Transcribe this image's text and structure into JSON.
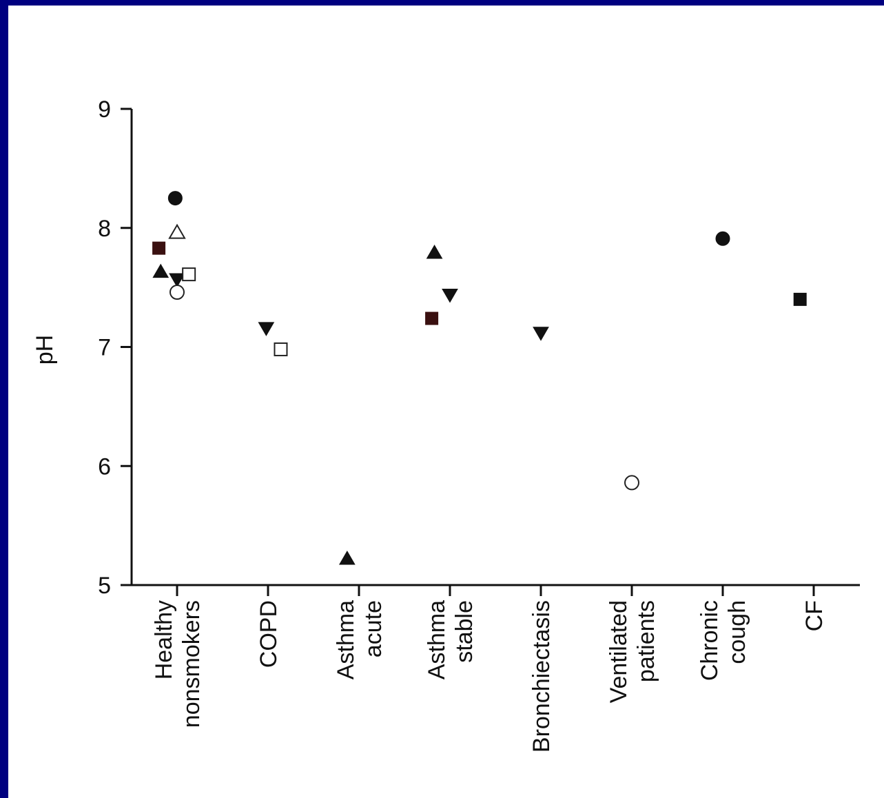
{
  "chart_data": {
    "type": "scatter",
    "title": "",
    "xlabel": "",
    "ylabel": "pH",
    "ylim": [
      5,
      9
    ],
    "yticks": [
      "5",
      "6",
      "7",
      "8",
      "9"
    ],
    "grid": false,
    "categories": [
      {
        "id": "healthy",
        "lines": [
          "Healthy",
          "nonsmokers"
        ]
      },
      {
        "id": "copd",
        "lines": [
          "COPD"
        ]
      },
      {
        "id": "asthma-acute",
        "lines": [
          "Asthma",
          "acute"
        ]
      },
      {
        "id": "asthma-stable",
        "lines": [
          "Asthma",
          "stable"
        ]
      },
      {
        "id": "bronchiectasis",
        "lines": [
          "Bronchiectasis"
        ]
      },
      {
        "id": "ventilated",
        "lines": [
          "Ventilated",
          "patients"
        ]
      },
      {
        "id": "chronic-cough",
        "lines": [
          "Chronic",
          "cough"
        ]
      },
      {
        "id": "cf",
        "lines": [
          "CF"
        ]
      }
    ],
    "points": [
      {
        "category": 0,
        "offset": -0.2,
        "y": 7.83,
        "marker": "square",
        "filled": true,
        "color": "#3a1010"
      },
      {
        "category": 0,
        "offset": -0.18,
        "y": 7.63,
        "marker": "triangle-up",
        "filled": true,
        "color": "#111111"
      },
      {
        "category": 0,
        "offset": -0.02,
        "y": 8.25,
        "marker": "circle",
        "filled": true,
        "color": "#111111"
      },
      {
        "category": 0,
        "offset": 0.0,
        "y": 7.96,
        "marker": "triangle-up",
        "filled": false,
        "color": "#111111"
      },
      {
        "category": 0,
        "offset": 0.0,
        "y": 7.57,
        "marker": "triangle-down",
        "filled": true,
        "color": "#111111"
      },
      {
        "category": 0,
        "offset": 0.0,
        "y": 7.46,
        "marker": "circle",
        "filled": false,
        "color": "#111111"
      },
      {
        "category": 0,
        "offset": 0.13,
        "y": 7.61,
        "marker": "square",
        "filled": false,
        "color": "#111111"
      },
      {
        "category": 1,
        "offset": -0.02,
        "y": 7.16,
        "marker": "triangle-down",
        "filled": true,
        "color": "#111111"
      },
      {
        "category": 1,
        "offset": 0.14,
        "y": 6.98,
        "marker": "square",
        "filled": false,
        "color": "#111111"
      },
      {
        "category": 2,
        "offset": -0.13,
        "y": 5.22,
        "marker": "triangle-up",
        "filled": true,
        "color": "#111111"
      },
      {
        "category": 3,
        "offset": -0.17,
        "y": 7.79,
        "marker": "triangle-up",
        "filled": true,
        "color": "#111111"
      },
      {
        "category": 3,
        "offset": 0.0,
        "y": 7.44,
        "marker": "triangle-down",
        "filled": true,
        "color": "#111111"
      },
      {
        "category": 3,
        "offset": -0.2,
        "y": 7.24,
        "marker": "square",
        "filled": true,
        "color": "#3a1010"
      },
      {
        "category": 4,
        "offset": 0.0,
        "y": 7.12,
        "marker": "triangle-down",
        "filled": true,
        "color": "#111111"
      },
      {
        "category": 5,
        "offset": 0.0,
        "y": 5.86,
        "marker": "circle",
        "filled": false,
        "color": "#111111"
      },
      {
        "category": 6,
        "offset": 0.0,
        "y": 7.91,
        "marker": "circle",
        "filled": true,
        "color": "#111111"
      },
      {
        "category": 7,
        "offset": -0.15,
        "y": 7.4,
        "marker": "square",
        "filled": true,
        "color": "#111111"
      }
    ]
  }
}
